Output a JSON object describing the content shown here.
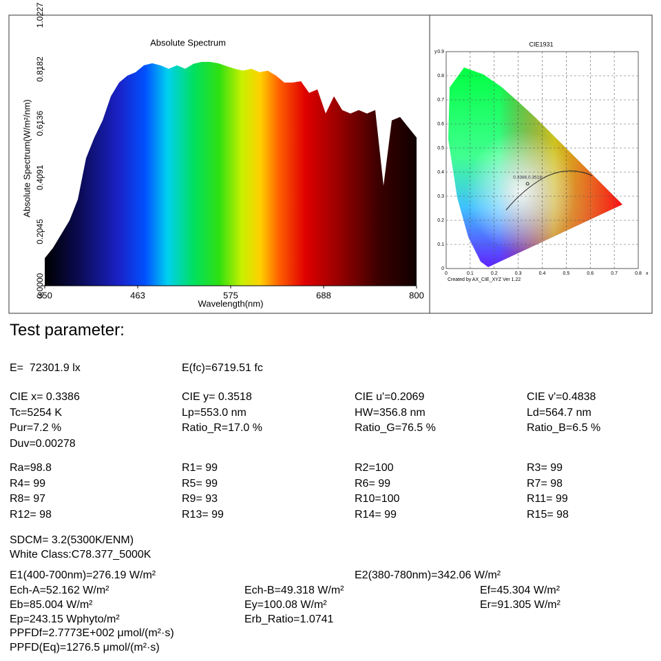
{
  "chart_data": [
    {
      "type": "area",
      "title": "Absolute Spectrum",
      "xlabel": "Wavelength(nm)",
      "ylabel": "Absolute Spectrum(W/m²/nm)",
      "x": [
        350,
        360,
        370,
        380,
        390,
        400,
        410,
        420,
        430,
        440,
        450,
        460,
        470,
        480,
        490,
        500,
        510,
        520,
        530,
        540,
        550,
        560,
        570,
        580,
        590,
        600,
        610,
        620,
        630,
        640,
        650,
        660,
        670,
        680,
        690,
        700,
        710,
        720,
        730,
        740,
        750,
        760,
        770,
        780,
        790,
        800
      ],
      "values": [
        0.104,
        0.143,
        0.195,
        0.247,
        0.326,
        0.482,
        0.56,
        0.625,
        0.716,
        0.768,
        0.794,
        0.807,
        0.833,
        0.841,
        0.833,
        0.82,
        0.833,
        0.82,
        0.839,
        0.846,
        0.846,
        0.841,
        0.83,
        0.82,
        0.813,
        0.82,
        0.807,
        0.813,
        0.794,
        0.768,
        0.768,
        0.773,
        0.729,
        0.742,
        0.651,
        0.716,
        0.664,
        0.651,
        0.664,
        0.651,
        0.664,
        0.378,
        0.625,
        0.638,
        0.599,
        0.56
      ],
      "xlim": [
        350,
        800
      ],
      "xticks": [
        350,
        {
          "value": 462.5,
          "label": "463"
        },
        575,
        {
          "value": 687.5,
          "label": "688"
        },
        800
      ],
      "ylim": [
        0,
        1.0227
      ],
      "yticks": [
        {
          "value": 0,
          "label": "0.0000"
        },
        0.2045,
        0.4091,
        0.6136,
        0.8182,
        1.0227
      ]
    },
    {
      "type": "cie-diagram",
      "title": "CIE1931",
      "xlabel": "x",
      "ylabel": "y",
      "footer": "Created by AX_CIE_XYZ Ver 1.22",
      "x": [
        0.3386
      ],
      "values": [
        0.3518
      ],
      "annotations": [
        "0.3386,0.3518"
      ],
      "xlim": [
        0,
        0.8
      ],
      "xticks": [
        0,
        0.1,
        0.2,
        0.3,
        0.4,
        0.5,
        0.6,
        0.7,
        0.8
      ],
      "ylim": [
        0,
        0.9
      ],
      "yticks": [
        0,
        0.1,
        0.2,
        0.3,
        0.4,
        0.5,
        0.6,
        0.7,
        0.8,
        0.9
      ],
      "grid": true
    }
  ],
  "parameters": {
    "title": "Test parameter:",
    "rows": [
      [
        "E=  72301.9 lx",
        "E(fc)=6719.51 fc"
      ],
      [
        "CIE x= 0.3386",
        "CIE y= 0.3518",
        "CIE u'=0.2069",
        "CIE v'=0.4838"
      ],
      [
        "Tc=5254 K",
        "Lp=553.0 nm",
        "HW=356.8 nm",
        "Ld=564.7 nm"
      ],
      [
        "Pur=7.2 %",
        "Ratio_R=17.0 %",
        "Ratio_G=76.5 %",
        "Ratio_B=6.5 %"
      ],
      [
        "Duv=0.00278"
      ],
      [
        "Ra=98.8",
        "R1= 99",
        "R2=100",
        "R3= 99"
      ],
      [
        "R4= 99",
        "R5= 99",
        "R6= 99",
        "R7= 98"
      ],
      [
        "R8= 97",
        "R9= 93",
        "R10=100",
        "R11= 99"
      ],
      [
        "R12= 98",
        "R13= 99",
        "R14= 99",
        "R15= 98"
      ],
      [
        "SDCM= 3.2(5300K/ENM)"
      ],
      [
        "White Class:C78.377_5000K"
      ],
      [
        "E1(400-700nm)=276.19 W/m²",
        "E2(380-780nm)=342.06 W/m²"
      ],
      [
        "Ech-A=52.162 W/m²",
        "Ech-B=49.318 W/m²",
        "Ef=45.304 W/m²"
      ],
      [
        "Eb=85.004 W/m²",
        "Ey=100.08 W/m²",
        "Er=91.305 W/m²"
      ],
      [
        "Ep=243.15 Wphyto/m²",
        "Erb_Ratio=1.0741"
      ],
      [
        "PPFDf=2.7773E+002 μmol/(m²·s)"
      ],
      [
        "PPFD(Eq)=1276.5 μmol/(m²·s)"
      ]
    ]
  }
}
